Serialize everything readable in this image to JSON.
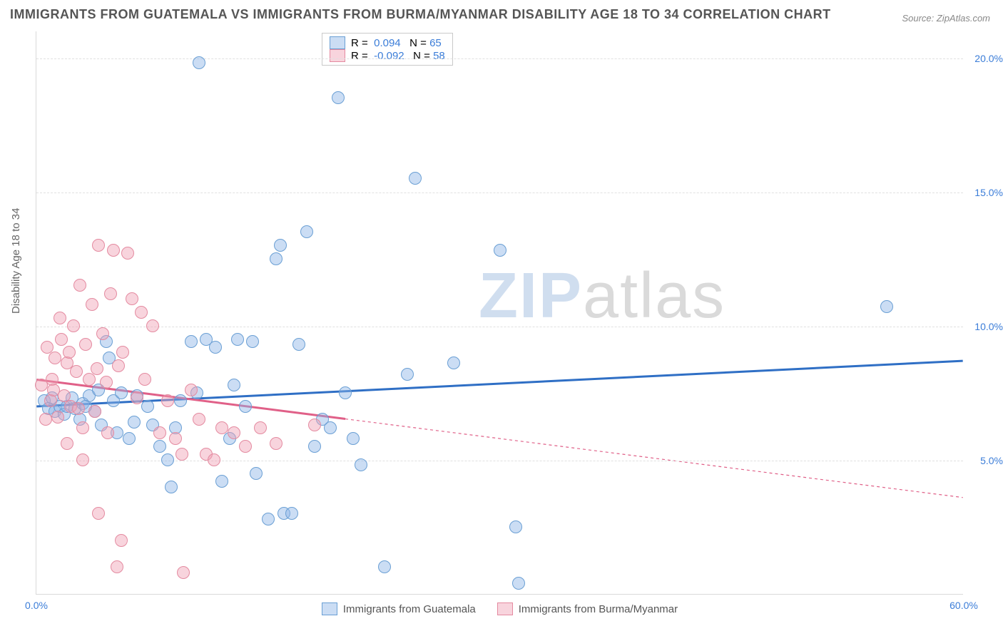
{
  "title": "IMMIGRANTS FROM GUATEMALA VS IMMIGRANTS FROM BURMA/MYANMAR DISABILITY AGE 18 TO 34 CORRELATION CHART",
  "source": "Source: ZipAtlas.com",
  "yaxis_title": "Disability Age 18 to 34",
  "watermark_a": "ZIP",
  "watermark_b": "atlas",
  "chart": {
    "type": "scatter",
    "xlim": [
      0,
      60
    ],
    "ylim": [
      0,
      21
    ],
    "xticks": [
      {
        "v": 0,
        "label": "0.0%"
      },
      {
        "v": 60,
        "label": "60.0%"
      }
    ],
    "yticks": [
      {
        "v": 5,
        "label": "5.0%"
      },
      {
        "v": 10,
        "label": "10.0%"
      },
      {
        "v": 15,
        "label": "15.0%"
      },
      {
        "v": 20,
        "label": "20.0%"
      }
    ],
    "grid_color": "#e0e0e0",
    "background": "#ffffff",
    "point_radius": 9,
    "point_border_width": 1,
    "series": [
      {
        "name": "Immigrants from Guatemala",
        "fill": "rgba(140,180,230,0.45)",
        "stroke": "#6a9fd4",
        "line_color": "#2f6fc5",
        "line_width": 3,
        "line_dash": "none",
        "trend": {
          "x1": 0,
          "y1": 7.0,
          "x2": 60,
          "y2": 8.7
        },
        "R": "0.094",
        "N": "65",
        "points": [
          [
            0.5,
            7.2
          ],
          [
            0.8,
            6.9
          ],
          [
            1.0,
            7.3
          ],
          [
            1.2,
            6.8
          ],
          [
            1.5,
            7.0
          ],
          [
            1.8,
            6.7
          ],
          [
            2.0,
            7.0
          ],
          [
            2.3,
            7.3
          ],
          [
            2.5,
            6.9
          ],
          [
            2.8,
            6.5
          ],
          [
            3.0,
            7.1
          ],
          [
            3.4,
            7.4
          ],
          [
            3.8,
            6.8
          ],
          [
            4.2,
            6.3
          ],
          [
            4.5,
            9.4
          ],
          [
            4.7,
            8.8
          ],
          [
            5.0,
            7.2
          ],
          [
            5.2,
            6.0
          ],
          [
            5.5,
            7.5
          ],
          [
            6.0,
            5.8
          ],
          [
            6.5,
            7.4
          ],
          [
            7.2,
            7.0
          ],
          [
            7.5,
            6.3
          ],
          [
            8.0,
            5.5
          ],
          [
            8.5,
            5.0
          ],
          [
            9.0,
            6.2
          ],
          [
            9.3,
            7.2
          ],
          [
            10.0,
            9.4
          ],
          [
            10.4,
            7.5
          ],
          [
            11.0,
            9.5
          ],
          [
            11.6,
            9.2
          ],
          [
            12.0,
            4.2
          ],
          [
            12.5,
            5.8
          ],
          [
            13.0,
            9.5
          ],
          [
            13.5,
            7.0
          ],
          [
            14.0,
            9.4
          ],
          [
            14.2,
            4.5
          ],
          [
            15.0,
            2.8
          ],
          [
            15.5,
            12.5
          ],
          [
            15.8,
            13.0
          ],
          [
            16.0,
            3.0
          ],
          [
            16.5,
            3.0
          ],
          [
            17.0,
            9.3
          ],
          [
            17.5,
            13.5
          ],
          [
            18.0,
            5.5
          ],
          [
            18.5,
            6.5
          ],
          [
            19.5,
            18.5
          ],
          [
            20.0,
            7.5
          ],
          [
            20.5,
            5.8
          ],
          [
            21.0,
            4.8
          ],
          [
            22.5,
            1.0
          ],
          [
            24.0,
            8.2
          ],
          [
            24.5,
            15.5
          ],
          [
            27.0,
            8.6
          ],
          [
            30.0,
            12.8
          ],
          [
            31.0,
            2.5
          ],
          [
            31.2,
            0.4
          ],
          [
            10.5,
            19.8
          ],
          [
            55.0,
            10.7
          ],
          [
            3.2,
            7.0
          ],
          [
            4.0,
            7.6
          ],
          [
            6.3,
            6.4
          ],
          [
            8.7,
            4.0
          ],
          [
            12.8,
            7.8
          ],
          [
            19.0,
            6.2
          ]
        ]
      },
      {
        "name": "Immigrants from Burma/Myanmar",
        "fill": "rgba(240,160,180,0.45)",
        "stroke": "#e48aa0",
        "line_color": "#e06088",
        "line_width": 2,
        "line_dash": "4 4",
        "solid_until_x": 20,
        "trend": {
          "x1": 0,
          "y1": 8.0,
          "x2": 60,
          "y2": 3.6
        },
        "R": "-0.092",
        "N": "58",
        "points": [
          [
            0.3,
            7.8
          ],
          [
            0.6,
            6.5
          ],
          [
            0.9,
            7.2
          ],
          [
            1.0,
            8.0
          ],
          [
            1.2,
            8.8
          ],
          [
            1.4,
            6.6
          ],
          [
            1.6,
            9.5
          ],
          [
            1.8,
            7.4
          ],
          [
            2.0,
            8.6
          ],
          [
            2.2,
            7.0
          ],
          [
            2.4,
            10.0
          ],
          [
            2.6,
            8.3
          ],
          [
            2.8,
            11.5
          ],
          [
            3.0,
            6.2
          ],
          [
            3.2,
            9.3
          ],
          [
            3.4,
            8.0
          ],
          [
            3.6,
            10.8
          ],
          [
            3.8,
            6.8
          ],
          [
            4.0,
            13.0
          ],
          [
            4.3,
            9.7
          ],
          [
            4.5,
            7.9
          ],
          [
            4.8,
            11.2
          ],
          [
            5.0,
            12.8
          ],
          [
            5.3,
            8.5
          ],
          [
            5.6,
            9.0
          ],
          [
            5.9,
            12.7
          ],
          [
            6.2,
            11.0
          ],
          [
            6.5,
            7.3
          ],
          [
            6.8,
            10.5
          ],
          [
            7.0,
            8.0
          ],
          [
            7.5,
            10.0
          ],
          [
            8.0,
            6.0
          ],
          [
            8.5,
            7.2
          ],
          [
            9.0,
            5.8
          ],
          [
            9.4,
            5.2
          ],
          [
            10.0,
            7.6
          ],
          [
            10.5,
            6.5
          ],
          [
            11.0,
            5.2
          ],
          [
            11.5,
            5.0
          ],
          [
            12.0,
            6.2
          ],
          [
            12.8,
            6.0
          ],
          [
            13.5,
            5.5
          ],
          [
            14.5,
            6.2
          ],
          [
            15.5,
            5.6
          ],
          [
            18.0,
            6.3
          ],
          [
            2.0,
            5.6
          ],
          [
            3.0,
            5.0
          ],
          [
            4.0,
            3.0
          ],
          [
            5.5,
            2.0
          ],
          [
            5.2,
            1.0
          ],
          [
            9.5,
            0.8
          ],
          [
            0.7,
            9.2
          ],
          [
            1.5,
            10.3
          ],
          [
            2.7,
            6.9
          ],
          [
            3.9,
            8.4
          ],
          [
            1.1,
            7.6
          ],
          [
            2.1,
            9.0
          ],
          [
            4.6,
            6.0
          ]
        ]
      }
    ]
  },
  "legend_top": {
    "R_label": "R =",
    "N_label": "N ="
  },
  "colors": {
    "axis_label": "#3b7dd8",
    "text": "#555555"
  }
}
